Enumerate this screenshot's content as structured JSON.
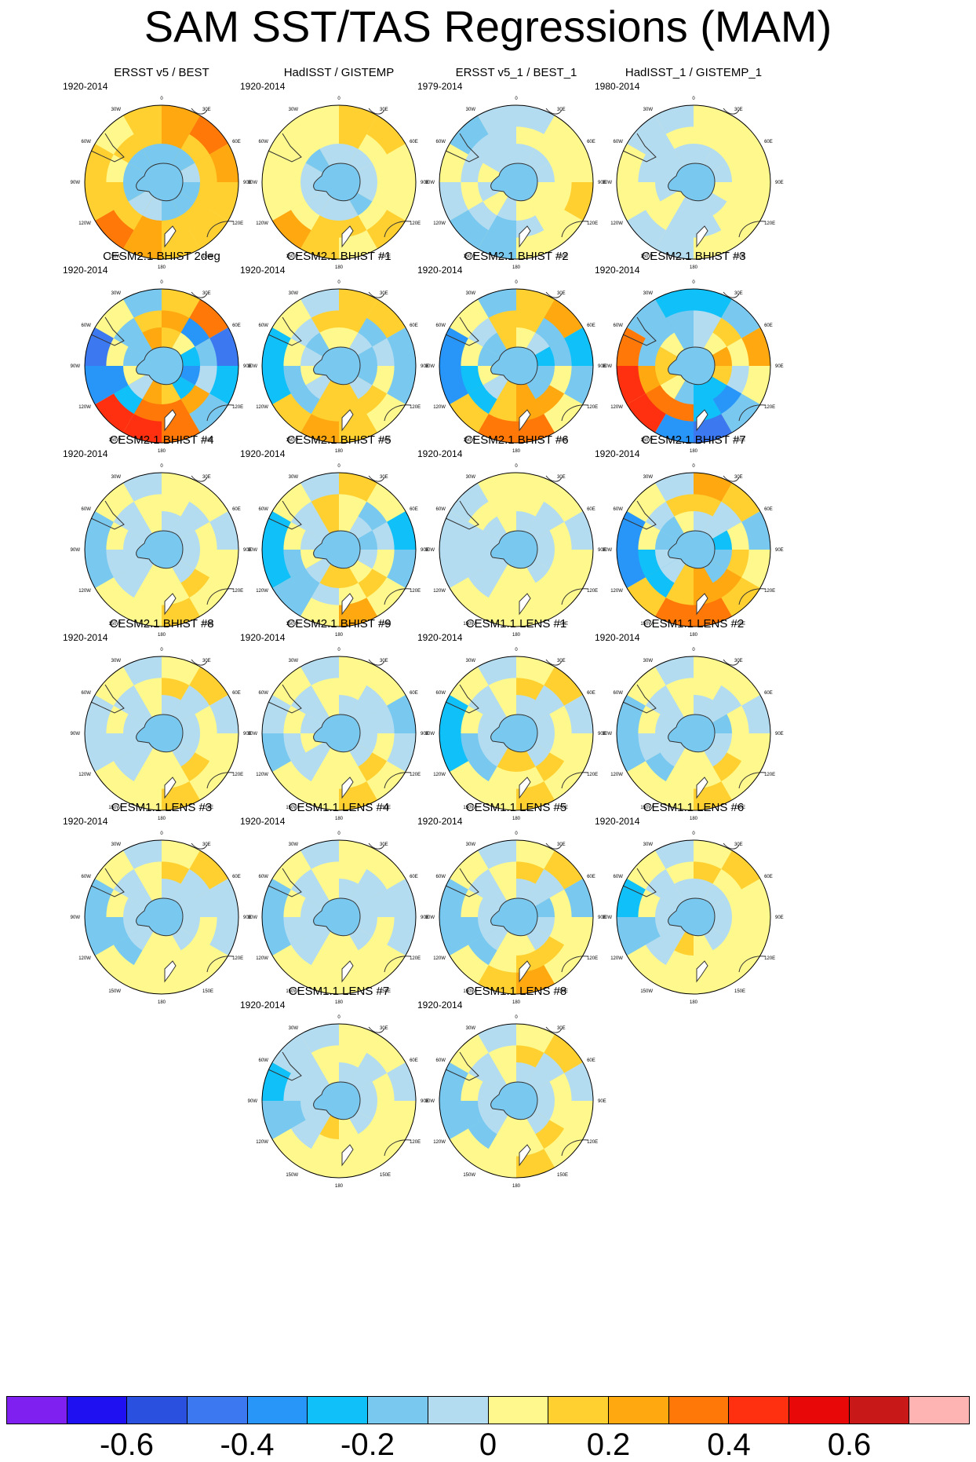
{
  "figure": {
    "title": "SAM SST/TAS Regressions (MAM)"
  },
  "map_labels": {
    "top": "0",
    "lon_30w": "30W",
    "lon_30e": "30E",
    "lon_60w": "60W",
    "lon_60e": "60E",
    "lon_90w": "90W",
    "lon_90e": "90E",
    "lon_120w": "120W",
    "lon_120e": "120E",
    "lon_150w": "150W",
    "lon_150e": "150E",
    "bottom": "180"
  },
  "panels": [
    {
      "title": "ERSST v5 / BEST",
      "period": "1920-2014",
      "pattern": [
        0.25,
        0.3,
        0.22,
        0.18,
        0.2,
        0.15,
        0.25,
        0.3,
        0.2,
        0.15,
        0.1,
        0.2
      ]
    },
    {
      "title": "HadISST / GISTEMP",
      "period": "1920-2014",
      "pattern": [
        0.12,
        0.18,
        0.1,
        0.08,
        0.12,
        0.1,
        0.15,
        0.25,
        0.1,
        0.05,
        0.08,
        0.1
      ]
    },
    {
      "title": "ERSST v5_1 / BEST_1",
      "period": "1979-2014",
      "pattern": [
        -0.05,
        0.08,
        0.05,
        0.12,
        0.05,
        0.1,
        -0.1,
        -0.15,
        -0.05,
        0.05,
        -0.1,
        0.0
      ]
    },
    {
      "title": "HadISST_1 / GISTEMP_1",
      "period": "1980-2014",
      "pattern": [
        0.05,
        0.02,
        0.1,
        0.08,
        0.05,
        0.08,
        -0.05,
        0.0,
        0.05,
        0.03,
        -0.05,
        0.0
      ]
    },
    {
      "title": "CESM2.1 BHIST 2deg",
      "period": "1920-2014",
      "pattern": [
        0.2,
        0.3,
        -0.4,
        -0.2,
        -0.1,
        0.35,
        0.5,
        0.4,
        -0.3,
        -0.4,
        0.1,
        -0.15
      ]
    },
    {
      "title": "CESM2.1 BHIST #1",
      "period": "1920-2014",
      "pattern": [
        0.15,
        0.2,
        -0.15,
        -0.1,
        0.05,
        0.2,
        0.25,
        0.15,
        -0.2,
        -0.25,
        0.05,
        -0.05
      ]
    },
    {
      "title": "CESM2.1 BHIST #2",
      "period": "1920-2014",
      "pattern": [
        0.2,
        0.25,
        -0.25,
        -0.15,
        0.05,
        0.35,
        0.3,
        0.2,
        -0.35,
        -0.3,
        0.1,
        -0.1
      ]
    },
    {
      "title": "CESM2.1 BHIST #3",
      "period": "1920-2014",
      "pattern": [
        -0.2,
        -0.1,
        0.25,
        0.1,
        -0.1,
        -0.4,
        -0.3,
        0.4,
        0.45,
        0.3,
        -0.15,
        -0.2
      ]
    },
    {
      "title": "CESM2.1 BHIST #4",
      "period": "1920-2014",
      "pattern": [
        0.05,
        0.1,
        -0.05,
        0.05,
        0.1,
        0.15,
        0.1,
        0.05,
        -0.1,
        -0.1,
        0.05,
        0.0
      ]
    },
    {
      "title": "CESM2.1 BHIST #5",
      "period": "1920-2014",
      "pattern": [
        0.15,
        0.05,
        -0.2,
        -0.1,
        0.1,
        0.25,
        0.05,
        -0.1,
        -0.25,
        -0.2,
        0.1,
        -0.05
      ]
    },
    {
      "title": "CESM2.1 BHIST #6",
      "period": "1920-2014",
      "pattern": [
        0.05,
        0.08,
        -0.05,
        0.05,
        0.05,
        0.1,
        0.05,
        0.05,
        -0.08,
        -0.05,
        0.0,
        0.05
      ]
    },
    {
      "title": "CESM2.1 BHIST #7",
      "period": "1920-2014",
      "pattern": [
        0.25,
        0.2,
        -0.1,
        0.1,
        0.15,
        0.35,
        0.3,
        0.2,
        -0.35,
        -0.3,
        0.1,
        0.0
      ]
    },
    {
      "title": "CESM2.1 BHIST #8",
      "period": "1920-2014",
      "pattern": [
        0.1,
        0.15,
        -0.05,
        0.05,
        0.1,
        0.15,
        0.1,
        0.1,
        -0.08,
        -0.05,
        0.05,
        0.0
      ]
    },
    {
      "title": "CESM2.1 BHIST #9",
      "period": "1920-2014",
      "pattern": [
        0.05,
        0.1,
        -0.1,
        0.0,
        0.05,
        0.15,
        0.05,
        0.05,
        -0.1,
        -0.05,
        0.05,
        -0.05
      ]
    },
    {
      "title": "CESM1.1 LENS #1",
      "period": "1920-2014",
      "pattern": [
        0.1,
        0.15,
        -0.05,
        0.1,
        0.05,
        0.15,
        0.1,
        0.05,
        -0.2,
        -0.25,
        0.05,
        0.0
      ]
    },
    {
      "title": "CESM1.1 LENS #2",
      "period": "1920-2014",
      "pattern": [
        0.05,
        0.1,
        -0.05,
        0.05,
        0.05,
        0.2,
        0.1,
        0.05,
        -0.15,
        -0.1,
        0.05,
        0.0
      ]
    },
    {
      "title": "CESM1.1 LENS #3",
      "period": "1920-2014",
      "pattern": [
        0.1,
        0.15,
        -0.05,
        0.0,
        0.05,
        0.1,
        0.1,
        0.05,
        -0.15,
        -0.15,
        0.05,
        0.0
      ]
    },
    {
      "title": "CESM1.1 LENS #4",
      "period": "1920-2014",
      "pattern": [
        0.05,
        0.1,
        -0.05,
        0.0,
        0.05,
        0.1,
        0.05,
        0.05,
        -0.1,
        -0.1,
        0.05,
        0.0
      ]
    },
    {
      "title": "CESM1.1 LENS #5",
      "period": "1920-2014",
      "pattern": [
        0.1,
        0.15,
        -0.1,
        0.05,
        0.1,
        0.25,
        0.15,
        0.05,
        -0.15,
        -0.15,
        0.1,
        0.0
      ]
    },
    {
      "title": "CESM1.1 LENS #6",
      "period": "1920-2014",
      "pattern": [
        0.1,
        0.15,
        0.05,
        0.1,
        0.05,
        0.1,
        0.1,
        0.1,
        -0.1,
        -0.2,
        0.05,
        0.0
      ]
    },
    {
      "title": "CESM1.1 LENS #7",
      "period": "1920-2014",
      "pattern": [
        0.05,
        0.1,
        -0.05,
        0.05,
        0.05,
        0.1,
        0.05,
        0.05,
        -0.1,
        -0.2,
        0.0,
        0.0
      ]
    },
    {
      "title": "CESM1.1 LENS #8",
      "period": "1920-2014",
      "pattern": [
        0.1,
        0.15,
        -0.05,
        0.05,
        0.1,
        0.15,
        0.1,
        0.05,
        -0.15,
        -0.15,
        0.05,
        0.0
      ]
    }
  ],
  "colorbar": {
    "colors": [
      "#8020f0",
      "#1e10f0",
      "#2a50e0",
      "#3c78f0",
      "#2896f8",
      "#10c0f8",
      "#78c8f0",
      "#b4dcf0",
      "#fff88c",
      "#ffd030",
      "#ffa810",
      "#ff7808",
      "#ff3010",
      "#e80808",
      "#c81818",
      "#ffb4b4"
    ],
    "labels": [
      "-0.6",
      "-0.4",
      "-0.2",
      "0",
      "0.2",
      "0.4",
      "0.6"
    ]
  }
}
